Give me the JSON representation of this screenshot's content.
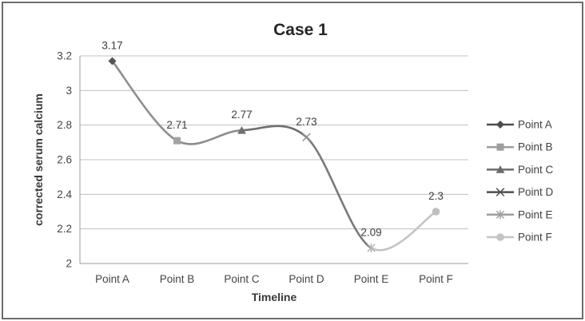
{
  "chart_data": {
    "type": "line",
    "title": "Case 1",
    "xlabel": "Timeline",
    "ylabel": "corrected serum calcium",
    "categories": [
      "Point A",
      "Point B",
      "Point C",
      "Point D",
      "Point E",
      "Point F"
    ],
    "values": [
      3.17,
      2.71,
      2.77,
      2.73,
      2.09,
      2.3
    ],
    "data_labels": [
      "3.17",
      "2.71",
      "2.77",
      "2.73",
      "2.09",
      "2.3"
    ],
    "line_smooth": true,
    "y_axis": {
      "min": 2,
      "max": 3.2,
      "step": 0.2,
      "tick_labels": [
        "3.2",
        "3",
        "2.8",
        "2.6",
        "2.4",
        "2.2",
        "2"
      ]
    },
    "grid": true,
    "legend": {
      "position": "right",
      "entries": [
        {
          "label": "Point A",
          "marker": "diamond",
          "color": "#4d4d4d",
          "plot_marker_color": "#555555"
        },
        {
          "label": "Point B",
          "marker": "square",
          "color": "#9e9e9e",
          "plot_marker_color": "#a3a3a3"
        },
        {
          "label": "Point C",
          "marker": "triangle",
          "color": "#6b6b6b",
          "plot_marker_color": "#6f6f6f"
        },
        {
          "label": "Point D",
          "marker": "x",
          "color": "#4f4f4f",
          "plot_marker_color": "#949494"
        },
        {
          "label": "Point E",
          "marker": "asterisk",
          "color": "#9e9e9e",
          "plot_marker_color": "#b0b0b0"
        },
        {
          "label": "Point F",
          "marker": "circle",
          "color": "#c4c4c4",
          "plot_marker_color": "#bfbfbf"
        }
      ]
    },
    "segment_colors": [
      "#8f8f8f",
      "#8c8c8c",
      "#6f6f6f",
      "#7a7a7a",
      "#c4c4c4"
    ],
    "colors": {
      "gridline": "#c0c0c0",
      "axis": "#9b9b9b",
      "title": "#262626",
      "text": "#404040"
    }
  }
}
